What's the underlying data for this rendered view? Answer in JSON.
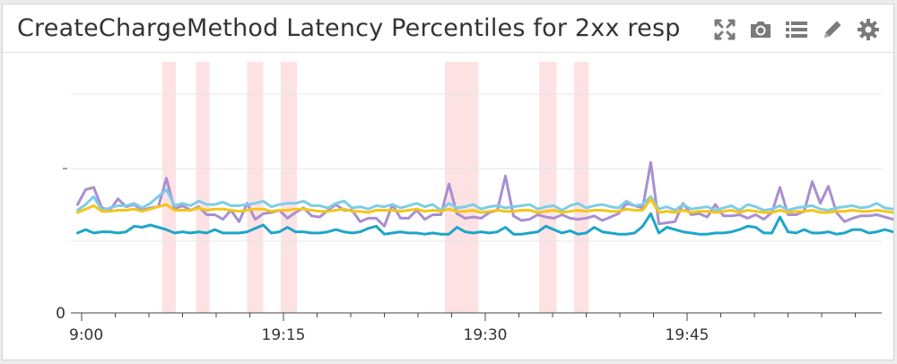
{
  "widget": {
    "title": "CreateChargeMethod Latency Percentiles for 2xx resp",
    "toolbar": [
      {
        "name": "expand-icon",
        "label": "Expand"
      },
      {
        "name": "camera-icon",
        "label": "Snapshot"
      },
      {
        "name": "list-icon",
        "label": "Legend"
      },
      {
        "name": "pencil-icon",
        "label": "Edit"
      },
      {
        "name": "gear-icon",
        "label": "Settings"
      }
    ],
    "colors": {
      "background": "#ffffff",
      "highlight": "#fde2e4",
      "gridline": "#e6e6e6"
    }
  },
  "chart_data": {
    "type": "line",
    "title": "CreateChargeMethod Latency Percentiles for 2xx resp",
    "xlabel": "",
    "ylabel": "",
    "x_ticks": [
      "19:00",
      "19:15",
      "19:30",
      "19:45"
    ],
    "x_tick_display": [
      "9:00",
      "19:15",
      "19:30",
      "19:45"
    ],
    "y_ticks": [
      "0"
    ],
    "grid": true,
    "legend": "none",
    "highlight_bands": [
      {
        "start": "19:06",
        "end": "19:07"
      },
      {
        "start": "19:08.5",
        "end": "19:09.5"
      },
      {
        "start": "19:12.3",
        "end": "19:13.5"
      },
      {
        "start": "19:14.8",
        "end": "19:16"
      },
      {
        "start": "19:27",
        "end": "19:29.5"
      },
      {
        "start": "19:34",
        "end": "19:35.3"
      },
      {
        "start": "19:36.6",
        "end": "19:37.7"
      }
    ],
    "series": [
      {
        "color": "#a98fd1",
        "start_minute": -0.3,
        "step_minutes": 0.6,
        "values": [
          9.5,
          10.8,
          11,
          9.2,
          9.0,
          10.0,
          9.3,
          9.5,
          9.0,
          9.2,
          9.3,
          11.8,
          9.1,
          9.4,
          9.0,
          9.3,
          8.6,
          8.6,
          8.2,
          9.0,
          8.0,
          9.6,
          8.2,
          8.7,
          8.8,
          9.0,
          8.3,
          8.8,
          9.2,
          8.5,
          8.4,
          9.0,
          9.5,
          9.0,
          9.0,
          8.0,
          8.3,
          8.3,
          7.6,
          9.5,
          8.3,
          8.3,
          9.0,
          8.2,
          8.6,
          8.6,
          11.3,
          8.7,
          8.3,
          8.4,
          8.3,
          8.8,
          9.0,
          12.0,
          8.5,
          8.1,
          8.2,
          8.6,
          8.4,
          8.3,
          8.6,
          8.3,
          8.2,
          8.3,
          8.5,
          8.1,
          8.4,
          8.7,
          9.6,
          9.4,
          9.2,
          13.2,
          7.8,
          7.9,
          8.0,
          9.6,
          8.6,
          8.7,
          8.4,
          9.5,
          8.5,
          8.5,
          8.6,
          8.3,
          8.6,
          8.2,
          8.8,
          11.0,
          8.6,
          8.6,
          8.9,
          11.5,
          9.6,
          11.1,
          8.8,
          8.0,
          8.3,
          8.5,
          8.5,
          8.6,
          8.4,
          8.2,
          8.4,
          8.3,
          7.9,
          13.0,
          8.0,
          8.3,
          8.3,
          13.3,
          9.6,
          8.3,
          8.2,
          8.0,
          8.4,
          9.5,
          10.2,
          12.7,
          8.4,
          8.3,
          8.0,
          8.4,
          10.2,
          7.9,
          8.0,
          8.3,
          8.6,
          8.2,
          8.9,
          11.2,
          8.4,
          8.5,
          8.0,
          8.2,
          8.6,
          10.3,
          8.3,
          8.4,
          8.8,
          10.2,
          9.2,
          9.0,
          9.3,
          8.2,
          7.9
        ]
      },
      {
        "color": "#7dcde8",
        "start_minute": -0.3,
        "step_minutes": 0.6,
        "values": [
          9.0,
          9.5,
          10.2,
          9.0,
          9.2,
          9.4,
          9.4,
          9.6,
          9.2,
          9.6,
          10.2,
          10.8,
          9.4,
          9.6,
          9.4,
          9.8,
          9.5,
          9.5,
          9.7,
          9.4,
          9.4,
          9.5,
          9.6,
          9.8,
          9.3,
          9.5,
          9.6,
          9.6,
          9.8,
          9.4,
          9.4,
          9.2,
          9.6,
          9.8,
          9.2,
          9.3,
          9.1,
          9.4,
          9.3,
          9.5,
          9.2,
          9.4,
          9.6,
          9.3,
          9.5,
          9.0,
          9.6,
          9.2,
          9.3,
          9.5,
          9.1,
          9.3,
          9.4,
          9.2,
          9.3,
          9.4,
          9.5,
          9.1,
          9.3,
          9.4,
          9.0,
          9.4,
          9.6,
          9.2,
          9.4,
          9.5,
          9.3,
          9.2,
          9.8,
          9.4,
          9.5,
          10.2,
          9.1,
          9.3,
          9.0,
          9.5,
          9.1,
          9.2,
          9.3,
          9.0,
          9.2,
          9.4,
          9.0,
          9.5,
          9.3,
          9.0,
          9.1,
          9.4,
          9.0,
          9.2,
          9.3,
          9.4,
          9.1,
          9.0,
          9.2,
          9.3,
          9.4,
          9.2,
          9.3,
          9.6,
          9.2,
          9.1,
          9.3,
          9.1,
          9.0,
          10.6,
          9.1,
          9.2,
          9.0,
          9.3,
          9.1,
          9.3,
          9.0,
          9.3,
          9.1,
          9.2,
          9.8,
          10.3,
          9.4,
          9.3,
          9.0,
          9.2,
          9.4,
          9.0,
          9.1,
          9.2,
          9.4,
          9.1,
          9.0,
          9.6,
          9.2,
          9.4,
          9.1,
          9.3,
          9.2,
          9.6,
          9.1,
          9.2,
          9.4,
          9.3,
          9.2,
          9.0,
          9.5,
          9.3,
          9.2
        ]
      },
      {
        "color": "#f5c518",
        "start_minute": -0.3,
        "step_minutes": 0.6,
        "values": [
          8.8,
          9.1,
          9.4,
          8.9,
          8.9,
          9.0,
          9.0,
          9.1,
          8.9,
          9.1,
          9.3,
          9.5,
          9.0,
          9.0,
          9.0,
          9.2,
          9.0,
          9.1,
          9.1,
          9.0,
          8.9,
          9.0,
          9.1,
          9.1,
          8.9,
          9.0,
          9.0,
          9.1,
          9.1,
          9.0,
          8.9,
          8.9,
          9.0,
          9.1,
          8.9,
          8.9,
          8.8,
          9.0,
          9.0,
          9.0,
          8.9,
          9.0,
          9.1,
          8.9,
          9.0,
          8.9,
          9.1,
          8.9,
          8.9,
          9.0,
          8.8,
          8.9,
          9.0,
          8.9,
          8.9,
          9.0,
          9.0,
          8.8,
          8.9,
          9.0,
          8.8,
          8.9,
          9.0,
          8.9,
          9.0,
          9.0,
          8.9,
          8.9,
          9.1,
          9.0,
          9.0,
          10.0,
          8.8,
          8.9,
          8.8,
          9.0,
          8.8,
          8.9,
          8.9,
          8.8,
          8.9,
          9.0,
          8.8,
          9.0,
          8.9,
          8.8,
          8.8,
          9.0,
          8.8,
          8.9,
          8.9,
          9.0,
          8.8,
          8.8,
          8.9,
          8.9,
          9.0,
          8.9,
          8.9,
          9.0,
          8.9,
          8.8,
          8.9,
          8.8,
          8.8,
          9.5,
          8.8,
          8.9,
          8.8,
          8.9,
          8.8,
          8.9,
          8.8,
          8.9,
          8.8,
          8.9,
          9.1,
          9.6,
          8.9,
          8.9,
          8.8,
          8.9,
          9.0,
          8.8,
          8.8,
          8.9,
          9.0,
          8.8,
          8.8,
          9.0,
          8.9,
          9.0,
          8.8,
          8.9,
          8.9,
          9.1,
          8.8,
          8.9,
          9.0,
          8.9,
          8.9,
          8.8,
          9.0,
          8.9,
          8.9
        ]
      },
      {
        "color": "#1ea5c8",
        "start_minute": -0.3,
        "step_minutes": 0.6,
        "values": [
          7.0,
          7.3,
          7.0,
          7.1,
          7.1,
          7.0,
          7.1,
          7.6,
          7.5,
          7.7,
          7.5,
          7.3,
          7.0,
          7.1,
          7.0,
          7.1,
          7.0,
          7.3,
          7.0,
          7.0,
          7.0,
          7.1,
          7.4,
          7.7,
          7.0,
          7.1,
          7.5,
          7.1,
          7.1,
          7.0,
          7.0,
          7.1,
          7.3,
          7.1,
          7.0,
          7.1,
          7.4,
          7.6,
          6.9,
          7.0,
          7.1,
          7.0,
          7.0,
          6.9,
          7.0,
          6.9,
          6.9,
          7.5,
          7.1,
          7.0,
          7.1,
          7.0,
          7.1,
          7.5,
          6.9,
          6.9,
          7.0,
          7.1,
          7.6,
          7.3,
          7.0,
          7.2,
          6.9,
          7.0,
          7.5,
          7.1,
          7.0,
          6.9,
          6.9,
          7.0,
          7.6,
          8.7,
          7.0,
          7.5,
          7.3,
          7.1,
          7.0,
          6.9,
          6.9,
          7.0,
          7.0,
          7.1,
          7.3,
          7.6,
          7.5,
          7.0,
          7.0,
          8.4,
          7.1,
          7.0,
          7.3,
          7.0,
          7.0,
          7.1,
          6.9,
          7.0,
          7.3,
          7.3,
          7.0,
          7.1,
          7.3,
          7.1,
          7.0,
          7.0,
          7.3,
          8.2,
          7.1,
          7.0,
          7.1,
          7.0,
          7.6,
          7.3,
          7.0,
          7.0,
          7.0,
          7.1,
          7.0,
          7.3,
          7.0,
          7.0,
          7.1,
          7.2,
          7.7,
          7.0,
          7.1,
          7.0,
          7.1,
          7.3,
          7.0,
          7.9,
          7.0,
          7.1,
          7.0,
          7.0,
          7.1,
          7.5,
          7.0,
          7.1,
          7.1,
          7.5,
          7.1,
          7.0,
          7.1,
          7.0,
          7.1
        ]
      }
    ]
  }
}
